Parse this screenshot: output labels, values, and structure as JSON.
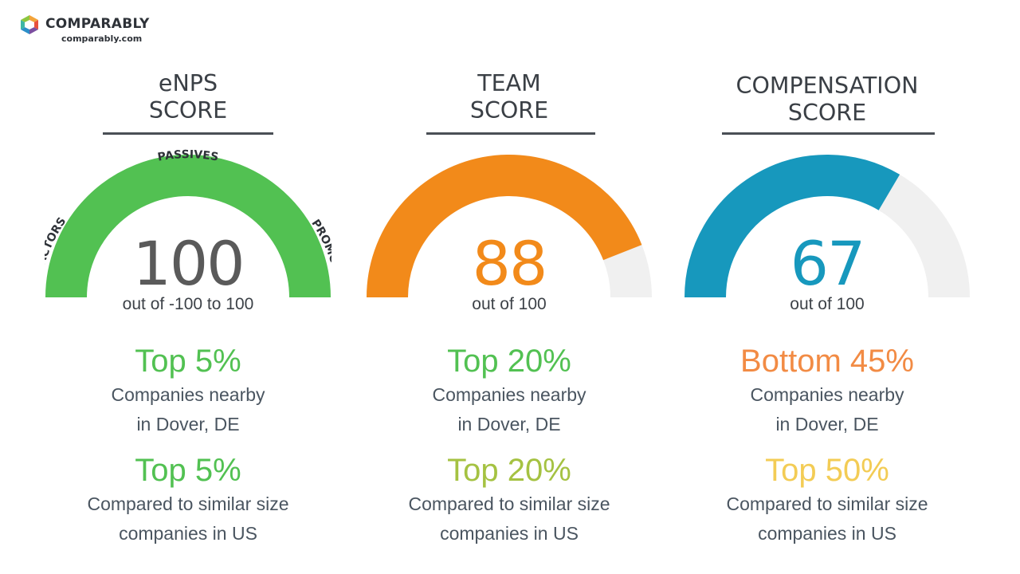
{
  "brand": {
    "name": "COMPARABLY",
    "url": "comparably.com"
  },
  "colors": {
    "green": "#52c152",
    "orange": "#f28a1a",
    "teal": "#1798bd",
    "track": "#f0f0f0",
    "light_green": "#a5c242",
    "yellow": "#f3cc55",
    "bottom_orange": "#f28b44"
  },
  "cards": [
    {
      "title_line1": "eNPS",
      "title_line2": "SCORE",
      "score": "100",
      "score_color": "#5a5a5a",
      "scale": "out of -100 to 100",
      "gauge_fraction": 1.0,
      "gauge_color": "#52c152",
      "gauge_labels": {
        "left": "DETRACTORS",
        "top": "PASSIVES",
        "right": "PROMOTERS"
      },
      "local_rank": "Top 5%",
      "local_rank_color": "#52c152",
      "local_desc_line1": "Companies nearby",
      "local_desc_line2": "in Dover, DE",
      "national_rank": "Top 5%",
      "national_rank_color": "#52c152",
      "national_desc_line1": "Compared to similar size",
      "national_desc_line2": "companies in US"
    },
    {
      "title_line1": "TEAM",
      "title_line2": "SCORE",
      "score": "88",
      "score_color": "#f28a1a",
      "scale": "out of 100",
      "gauge_fraction": 0.88,
      "gauge_color": "#f28a1a",
      "local_rank": "Top 20%",
      "local_rank_color": "#52c152",
      "local_desc_line1": "Companies nearby",
      "local_desc_line2": "in Dover, DE",
      "national_rank": "Top 20%",
      "national_rank_color": "#a5c242",
      "national_desc_line1": "Compared to similar size",
      "national_desc_line2": "companies in US"
    },
    {
      "title_line1": "COMPENSATION",
      "title_line2": "SCORE",
      "score": "67",
      "score_color": "#1798bd",
      "scale": "out of 100",
      "gauge_fraction": 0.67,
      "gauge_color": "#1798bd",
      "local_rank": "Bottom 45%",
      "local_rank_color": "#f28b44",
      "local_desc_line1": "Companies nearby",
      "local_desc_line2": "in Dover, DE",
      "national_rank": "Top 50%",
      "national_rank_color": "#f3cc55",
      "national_desc_line1": "Compared to similar size",
      "national_desc_line2": "companies in US"
    }
  ]
}
